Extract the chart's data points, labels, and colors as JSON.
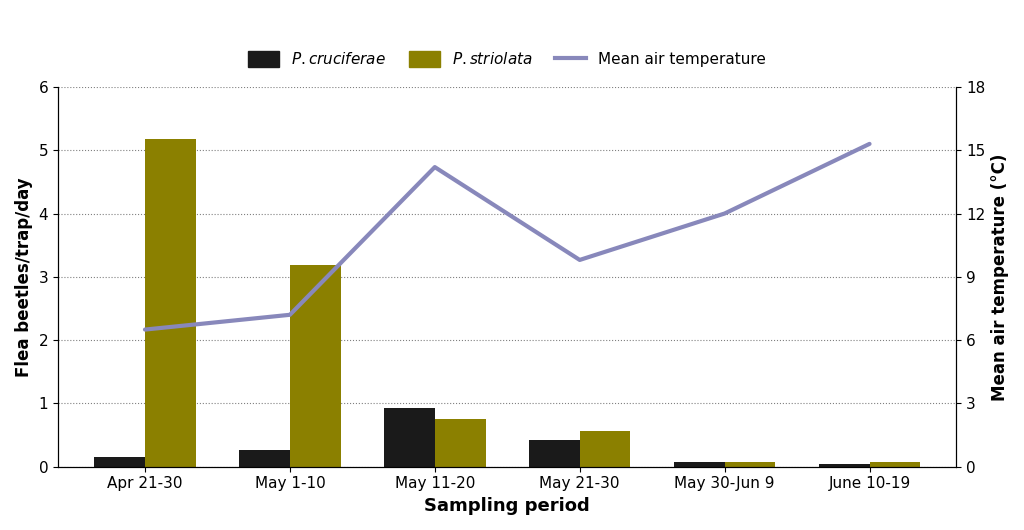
{
  "categories": [
    "Apr 21-30",
    "May 1-10",
    "May 11-20",
    "May 21-30",
    "May 30-Jun 9",
    "June 10-19"
  ],
  "cruciferae": [
    0.15,
    0.27,
    0.93,
    0.43,
    0.08,
    0.05
  ],
  "striolata": [
    5.18,
    3.18,
    0.75,
    0.57,
    0.08,
    0.07
  ],
  "temperature": [
    6.5,
    7.2,
    14.2,
    9.8,
    12.0,
    15.3
  ],
  "bar_color_cruciferae": "#1a1a1a",
  "bar_color_striolata": "#8B8000",
  "line_color_temperature": "#8888bb",
  "ylabel_left": "Flea beetles/trap/day",
  "ylabel_right": "Mean air temperature (°C)",
  "xlabel": "Sampling period",
  "ylim_left": [
    0,
    6
  ],
  "ylim_right": [
    0,
    18
  ],
  "yticks_left": [
    0,
    1,
    2,
    3,
    4,
    5,
    6
  ],
  "yticks_right": [
    0,
    3,
    6,
    9,
    12,
    15,
    18
  ],
  "background_color": "#ffffff",
  "bar_width": 0.35,
  "line_width": 3.0
}
